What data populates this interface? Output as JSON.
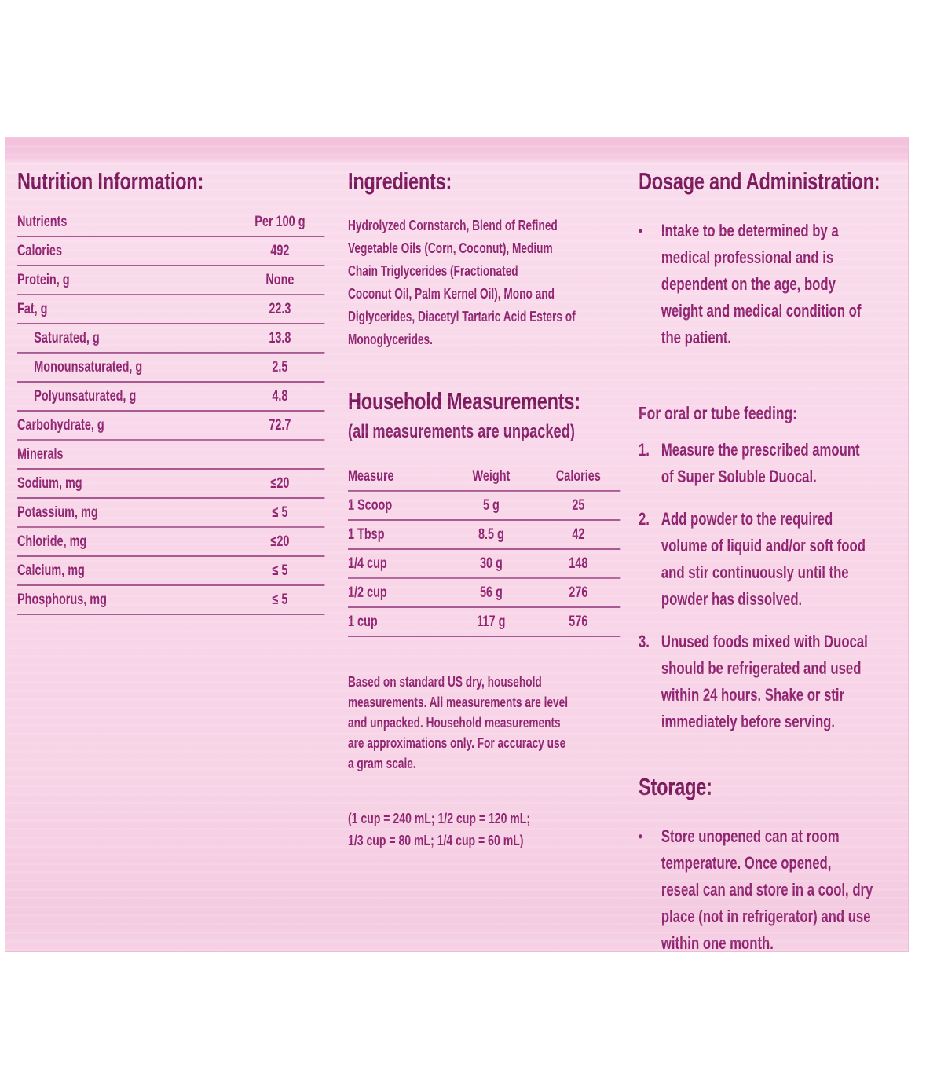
{
  "page": {
    "bullet_char": "•",
    "colors": {
      "panel_bg": "#f8d7e9",
      "ink": "#8f2370",
      "heading": "#7c1a5e",
      "rule": "#aa5a93"
    }
  },
  "nutrition": {
    "title": "Nutrition Information:",
    "col_headers": [
      "Nutrients",
      "Per 100 g"
    ],
    "rows": [
      {
        "label": "Calories",
        "value": "492"
      },
      {
        "label": "Protein, g",
        "value": "None"
      },
      {
        "label": "Fat, g",
        "value": "22.3"
      },
      {
        "label": "Saturated, g",
        "value": "13.8"
      },
      {
        "label": "Monounsaturated, g",
        "value": "2.5"
      },
      {
        "label": "Polyunsaturated, g",
        "value": "4.8"
      },
      {
        "label": "Carbohydrate, g",
        "value": "72.7"
      },
      {
        "label": "Minerals",
        "value": ""
      },
      {
        "label": "Sodium, mg",
        "value": "≤20"
      },
      {
        "label": "Potassium, mg",
        "value": "≤ 5"
      },
      {
        "label": "Chloride, mg",
        "value": "≤20"
      },
      {
        "label": "Calcium, mg",
        "value": "≤ 5"
      },
      {
        "label": "Phosphorus, mg",
        "value": "≤ 5"
      }
    ]
  },
  "ingredients": {
    "title": "Ingredients:",
    "body": "Hydrolyzed Cornstarch, Blend of Refined\nVegetable Oils (Corn, Coconut), Medium\nChain Triglycerides (Fractionated\nCoconut Oil, Palm Kernel Oil), Mono and\nDiglycerides, Diacetyl Tartaric Acid Esters of\nMonoglycerides."
  },
  "household": {
    "title": "Household Measurements:",
    "subtitle": "(all measurements are unpacked)",
    "col_headers": [
      "Measure",
      "Weight",
      "Calories"
    ],
    "rows": [
      {
        "measure": "1 Scoop",
        "weight": "5 g",
        "calories": "25"
      },
      {
        "measure": "1 Tbsp",
        "weight": "8.5 g",
        "calories": "42"
      },
      {
        "measure": "1/4 cup",
        "weight": "30 g",
        "calories": "148"
      },
      {
        "measure": "1/2 cup",
        "weight": "56 g",
        "calories": "276"
      },
      {
        "measure": "1 cup",
        "weight": "117 g",
        "calories": "576"
      }
    ],
    "note": "Based on standard US dry, household\nmeasurements. All measurements are level\nand unpacked. Household measurements\nare approximations only. For accuracy use\na gram scale.",
    "conversions": "(1 cup = 240 mL;  1/2 cup = 120 mL;\n1/3 cup = 80 mL;  1/4 cup = 60 mL)"
  },
  "dosage": {
    "title": "Dosage and Administration:",
    "bullet": "Intake to be determined by a\nmedical professional and is\ndependent on the age, body\nweight and medical condition of\nthe patient.",
    "feeding_heading": "For oral or tube feeding:",
    "steps": [
      {
        "num": "1.",
        "text": "Measure the prescribed amount\nof Super Soluble Duocal."
      },
      {
        "num": "2.",
        "text": "Add powder to the required\nvolume of liquid and/or soft food\nand stir continuously until the\npowder has dissolved."
      },
      {
        "num": "3.",
        "text": "Unused foods mixed with Duocal\nshould be refrigerated and used\nwithin 24 hours.  Shake or stir\nimmediately before serving."
      }
    ]
  },
  "storage": {
    "title": "Storage:",
    "bullet": "Store unopened can at room\ntemperature.  Once opened,\nreseal can and store in a cool, dry\nplace (not in refrigerator) and use\nwithin one month."
  }
}
